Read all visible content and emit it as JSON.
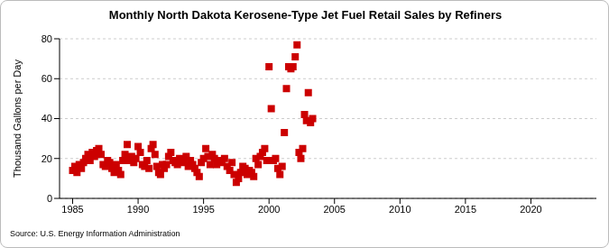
{
  "chart_data": {
    "type": "scatter",
    "title": "Monthly North Dakota Kerosene-Type Jet Fuel Retail Sales by Refiners",
    "y_label": "Thousand Gallons per Day",
    "source": "Source: U.S. Energy Information Administration",
    "color": "#cc0000",
    "marker": "square",
    "grid": true,
    "xlim": [
      1984,
      2025
    ],
    "xticks": [
      1985,
      1990,
      1995,
      2000,
      2005,
      2010,
      2015,
      2020
    ],
    "ylim": [
      0,
      80
    ],
    "yticks": [
      0,
      20,
      40,
      60,
      80
    ],
    "x": [
      1985.0,
      1985.17,
      1985.33,
      1985.5,
      1985.67,
      1985.83,
      1986.0,
      1986.17,
      1986.33,
      1986.5,
      1986.67,
      1986.83,
      1987.0,
      1987.17,
      1987.33,
      1987.5,
      1987.67,
      1987.83,
      1988.0,
      1988.17,
      1988.33,
      1988.5,
      1988.67,
      1988.83,
      1989.0,
      1989.17,
      1989.33,
      1989.5,
      1989.67,
      1989.83,
      1990.0,
      1990.17,
      1990.33,
      1990.5,
      1990.67,
      1990.83,
      1991.0,
      1991.14,
      1991.29,
      1991.43,
      1991.57,
      1991.71,
      1991.86,
      1992.0,
      1992.17,
      1992.33,
      1992.5,
      1992.67,
      1992.83,
      1993.0,
      1993.17,
      1993.33,
      1993.5,
      1993.67,
      1993.83,
      1994.0,
      1994.17,
      1994.33,
      1994.5,
      1994.67,
      1994.83,
      1995.0,
      1995.17,
      1995.33,
      1995.5,
      1995.67,
      1995.83,
      1996.0,
      1996.2,
      1996.4,
      1996.6,
      1996.8,
      1997.0,
      1997.17,
      1997.33,
      1997.5,
      1997.67,
      1997.83,
      1998.0,
      1998.17,
      1998.33,
      1998.5,
      1998.67,
      1998.83,
      1999.0,
      1999.17,
      1999.33,
      1999.5,
      1999.67,
      1999.83,
      2000.0,
      2000.17,
      2000.33,
      2000.5,
      2000.67,
      2000.83,
      2001.0,
      2001.17,
      2001.33,
      2001.5,
      2001.67,
      2001.83,
      2002.0,
      2002.14,
      2002.29,
      2002.43,
      2002.57,
      2002.71,
      2002.86,
      2003.0,
      2003.17,
      2003.33
    ],
    "values": [
      14,
      16,
      13,
      17,
      15,
      18,
      20,
      22,
      19,
      23,
      21,
      24,
      25,
      22,
      17,
      16,
      19,
      18,
      15,
      13,
      17,
      14,
      12,
      19,
      22,
      27,
      19,
      21,
      18,
      20,
      26,
      23,
      17,
      16,
      19,
      15,
      25,
      27,
      22,
      16,
      13,
      12,
      17,
      15,
      17,
      21,
      23,
      19,
      18,
      17,
      20,
      19,
      18,
      21,
      16,
      19,
      17,
      15,
      13,
      11,
      18,
      20,
      25,
      21,
      17,
      22,
      20,
      17,
      19,
      18,
      20,
      16,
      14,
      18,
      12,
      8,
      10,
      13,
      16,
      15,
      12,
      14,
      13,
      11,
      20,
      17,
      21,
      23,
      25,
      19,
      66,
      45,
      19,
      20,
      15,
      12,
      16,
      33,
      55,
      66,
      65,
      66,
      71,
      77,
      23,
      20,
      25,
      42,
      39,
      53,
      38,
      40
    ]
  }
}
